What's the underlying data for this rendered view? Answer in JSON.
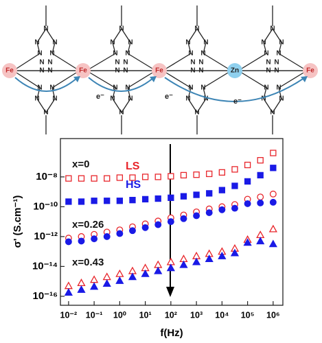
{
  "diagram": {
    "metal_labels": [
      "Fe",
      "Fe",
      "Fe",
      "Zn",
      "Fe"
    ],
    "electron_labels": [
      "e⁻",
      "e⁻",
      "e⁻"
    ],
    "ring_atom": "N"
  },
  "chart_data": {
    "type": "scatter",
    "xlabel": "f(Hz)",
    "ylabel": "σ' (S.cm⁻¹)",
    "xlog": true,
    "ylog": true,
    "xlim": [
      0.0048,
      2400000
    ],
    "ylim": [
      2.5e-17,
      3.7e-06
    ],
    "xticks": [
      {
        "value": 0.01,
        "label": "10⁻²"
      },
      {
        "value": 0.1,
        "label": "10⁻¹"
      },
      {
        "value": 1,
        "label": "10⁰"
      },
      {
        "value": 10,
        "label": "10¹"
      },
      {
        "value": 100,
        "label": "10²"
      },
      {
        "value": 1000,
        "label": "10³"
      },
      {
        "value": 10000,
        "label": "10⁴"
      },
      {
        "value": 100000,
        "label": "10⁵"
      },
      {
        "value": 1000000,
        "label": "10⁶"
      }
    ],
    "yticks": [
      {
        "value": 1e-16,
        "label": "10⁻¹⁶"
      },
      {
        "value": 1e-14,
        "label": "10⁻¹⁴"
      },
      {
        "value": 1e-12,
        "label": "10⁻¹²"
      },
      {
        "value": 1e-10,
        "label": "10⁻¹⁰"
      },
      {
        "value": 1e-08,
        "label": "10⁻⁸"
      }
    ],
    "x": [
      0.01,
      0.0316,
      0.1,
      0.316,
      1,
      3.16,
      10,
      31.6,
      100,
      316,
      1000,
      3160,
      10000,
      31600,
      100000,
      316000,
      1000000
    ],
    "series": [
      {
        "color": "#e8242a",
        "marker": "square",
        "filled": false,
        "values": [
          7.9e-09,
          7.9e-09,
          7.9e-09,
          7.9e-09,
          8.9e-09,
          8.9e-09,
          1e-08,
          1e-08,
          1.1e-08,
          1.3e-08,
          1.4e-08,
          1.6e-08,
          2e-08,
          3.2e-08,
          6.3e-08,
          1.3e-07,
          4e-07
        ]
      },
      {
        "color": "#1a1ae6",
        "marker": "square",
        "filled": true,
        "values": [
          2.2e-10,
          2.2e-10,
          2.5e-10,
          2.5e-10,
          2.5e-10,
          2.8e-10,
          3.2e-10,
          3.5e-10,
          4e-10,
          5e-10,
          6.3e-10,
          7.9e-10,
          1.3e-09,
          2.5e-09,
          5e-09,
          1.3e-08,
          4e-08
        ]
      },
      {
        "color": "#e8242a",
        "marker": "circle",
        "filled": false,
        "values": [
          7.9e-13,
          1e-12,
          1.4e-12,
          2e-12,
          2.8e-12,
          4.5e-12,
          7.1e-12,
          1.1e-11,
          1.8e-11,
          2.8e-11,
          4.5e-11,
          7.1e-11,
          1e-10,
          1.4e-10,
          3.2e-10,
          4.5e-10,
          7.1e-10
        ]
      },
      {
        "color": "#1a1ae6",
        "marker": "circle",
        "filled": true,
        "values": [
          4.5e-13,
          5e-13,
          7.1e-13,
          1e-12,
          1.6e-12,
          2.5e-12,
          4e-12,
          6.3e-12,
          1e-11,
          1.6e-11,
          2.5e-11,
          4e-11,
          6.3e-11,
          7.9e-11,
          1.6e-10,
          1.8e-10,
          2e-10
        ]
      },
      {
        "color": "#e8242a",
        "marker": "triangle",
        "filled": false,
        "values": [
          5e-16,
          7.9e-16,
          1.3e-15,
          2e-15,
          3.2e-15,
          5e-15,
          7.9e-15,
          1.3e-14,
          2e-14,
          3.2e-14,
          5e-14,
          7.1e-14,
          1e-13,
          1.6e-13,
          6.3e-13,
          1.3e-12,
          3.2e-12
        ]
      },
      {
        "color": "#1a1ae6",
        "marker": "triangle",
        "filled": true,
        "values": [
          1.8e-16,
          2.8e-16,
          4.5e-16,
          7.1e-16,
          1.1e-15,
          2e-15,
          3.2e-15,
          5e-15,
          7.9e-15,
          1.3e-14,
          2e-14,
          3.2e-14,
          5e-14,
          7.9e-14,
          4e-13,
          5e-13,
          3.2e-13
        ]
      }
    ],
    "annotations": [
      {
        "text": "x=0",
        "color": "#111111"
      },
      {
        "text": "LS",
        "color": "#e8242a"
      },
      {
        "text": "HS",
        "color": "#1a1ae6"
      },
      {
        "text": "x=0.26",
        "color": "#111111"
      },
      {
        "text": "x=0.43",
        "color": "#111111"
      }
    ]
  }
}
